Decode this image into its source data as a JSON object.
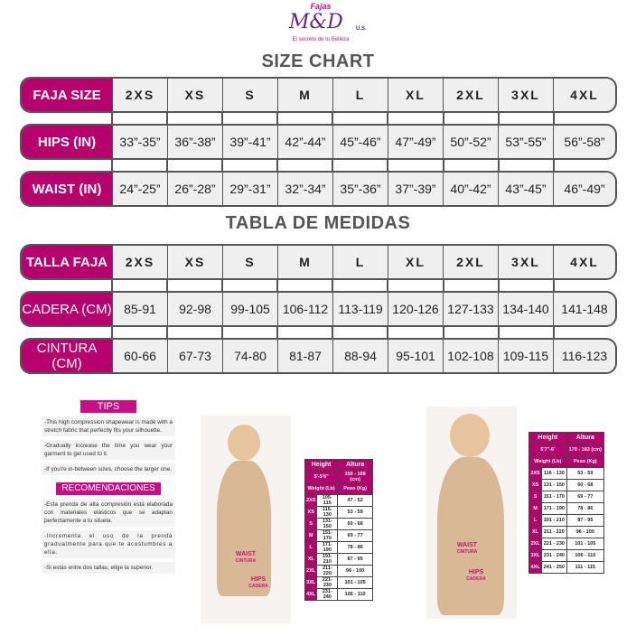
{
  "logo": {
    "brand_top": "Fajas",
    "brand": "M&D",
    "brand_suffix": "U.S.",
    "tagline": "El secreto de tu Belleza"
  },
  "size_chart": {
    "title": "SIZE CHART",
    "rows": [
      {
        "label": "FAJA SIZE",
        "values": [
          "2XS",
          "XS",
          "S",
          "M",
          "L",
          "XL",
          "2XL",
          "3XL",
          "4XL"
        ]
      },
      {
        "label": "HIPS (IN)",
        "values": [
          "33”-35”",
          "36”-38”",
          "39”-41”",
          "42”-44”",
          "45”-46”",
          "47”-49”",
          "50”-52”",
          "53”-55”",
          "56”-58”"
        ]
      },
      {
        "label": "WAIST (IN)",
        "values": [
          "24”-25”",
          "26”-28”",
          "29”-31”",
          "32”-34”",
          "35”-36”",
          "37”-39”",
          "40”-42”",
          "43”-45”",
          "46”-49”"
        ]
      }
    ]
  },
  "tabla": {
    "title": "TABLA DE MEDIDAS",
    "rows": [
      {
        "label": "TALLA FAJA",
        "values": [
          "2XS",
          "XS",
          "S",
          "M",
          "L",
          "XL",
          "2XL",
          "3XL",
          "4XL"
        ]
      },
      {
        "label": "CADERA (CM)",
        "values": [
          "85-91",
          "92-98",
          "99-105",
          "106-112",
          "113-119",
          "120-126",
          "127-133",
          "134-140",
          "141-148"
        ]
      },
      {
        "label": "CINTURA (CM)",
        "values": [
          "60-66",
          "67-73",
          "74-80",
          "81-87",
          "88-94",
          "95-101",
          "102-108",
          "109-115",
          "116-123"
        ]
      }
    ]
  },
  "tips": {
    "title": "TIPS",
    "items": [
      "-This high compression shapewear is made with a stretch fabric that perfectly fits your silhouette.",
      "-Gradually increase the time you wear your garment to get used to it.",
      "-If you're in-between sizes, choose the larger one."
    ]
  },
  "recomendaciones": {
    "title": "RECOMENDACIONES",
    "items": [
      "-Esta prenda de alta compresión está elaborada con materiales elásticos que se adaptan perfectamente a tu silueta.",
      "-Incrementa el uso de la prenda gradualmente para que te acostumbres a ella.",
      "-Si estás entre dos tallas, elige la superior."
    ]
  },
  "model_labels": {
    "waist": "WAIST",
    "cintura": "CINTURA",
    "hips": "HIPS",
    "cadera": "CADERA"
  },
  "small_table_1": {
    "header": [
      "Height",
      "Altura"
    ],
    "range": [
      "5'-5'6\"",
      "150 - 169 (cm)"
    ],
    "units": [
      "Weight (Lb)",
      "Peso (Kg)"
    ],
    "rows": [
      [
        "2XS",
        "105-115",
        "47 - 52"
      ],
      [
        "XS",
        "116-130",
        "53 - 59"
      ],
      [
        "S",
        "131-150",
        "60 - 68"
      ],
      [
        "M",
        "151-170",
        "69 - 77"
      ],
      [
        "L",
        "171-190",
        "78 - 86"
      ],
      [
        "XL",
        "191-210",
        "87 - 95"
      ],
      [
        "2XL",
        "211-220",
        "96 - 100"
      ],
      [
        "3XL",
        "221-230",
        "101 - 105"
      ],
      [
        "4XL",
        "231-240",
        "106 - 110"
      ]
    ]
  },
  "small_table_2": {
    "header": [
      "Height",
      "Altura"
    ],
    "range": [
      "5'7\"-6'",
      "170 - 183 (cm)"
    ],
    "units": [
      "Weight (Lb)",
      "Peso (Kg)"
    ],
    "rows": [
      [
        "2XS",
        "116 - 130",
        "53 - 59"
      ],
      [
        "XS",
        "131 - 150",
        "60 - 68"
      ],
      [
        "S",
        "151 - 170",
        "69 - 77"
      ],
      [
        "M",
        "171 - 190",
        "78 - 86"
      ],
      [
        "L",
        "191 - 210",
        "87 - 95"
      ],
      [
        "XL",
        "211 - 220",
        "96 - 100"
      ],
      [
        "2XL",
        "221 - 230",
        "101 - 105"
      ],
      [
        "3XL",
        "231 - 240",
        "106 - 110"
      ],
      [
        "4XL",
        "241 - 250",
        "111 - 115"
      ]
    ]
  },
  "colors": {
    "accent": "#b5006e",
    "border": "#555555",
    "cell": "#efefef"
  }
}
